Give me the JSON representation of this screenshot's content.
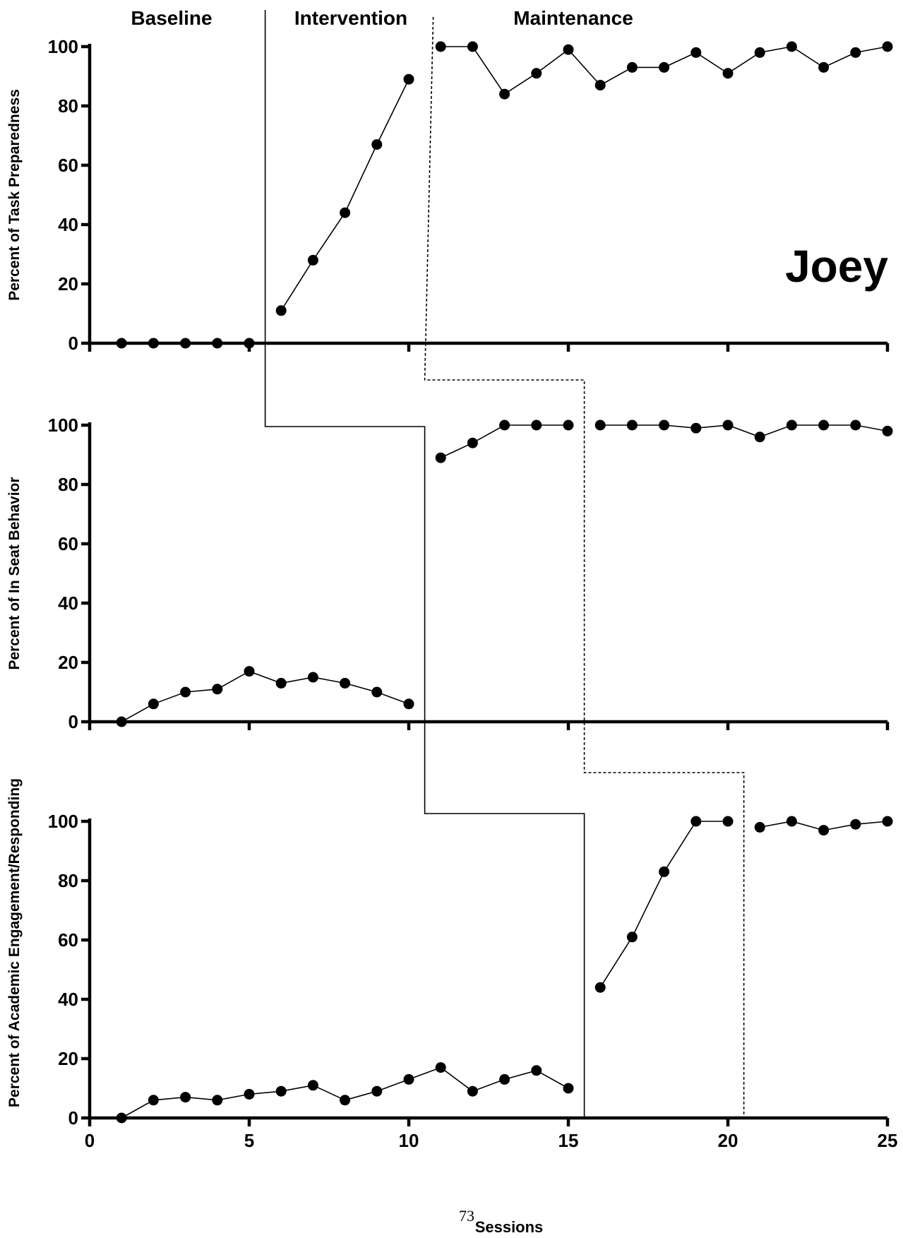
{
  "page_number": "73",
  "chart_data": {
    "type": "line",
    "participant": "Joey",
    "phases": [
      "Baseline",
      "Intervention",
      "Maintenance"
    ],
    "xlabel": "Sessions",
    "xlim": [
      0,
      25
    ],
    "x_ticks": [
      "0",
      "5",
      "10",
      "15",
      "20",
      "25"
    ],
    "panels": [
      {
        "ylabel": "Percent of Task Preparedness",
        "ylim": [
          0,
          100
        ],
        "y_ticks": [
          "0",
          "20",
          "40",
          "60",
          "80",
          "100"
        ],
        "segments": [
          {
            "phase": "Baseline",
            "x": [
              1,
              2,
              3,
              4,
              5
            ],
            "y": [
              0,
              0,
              0,
              0,
              0
            ]
          },
          {
            "phase": "Intervention",
            "x": [
              6,
              7,
              8,
              9,
              10
            ],
            "y": [
              11,
              28,
              44,
              67,
              89
            ]
          },
          {
            "phase": "Maintenance",
            "x": [
              11,
              12,
              13,
              14,
              15,
              16,
              17,
              18,
              19,
              20,
              21,
              22,
              23,
              24,
              25
            ],
            "y": [
              100,
              100,
              84,
              91,
              99,
              87,
              93,
              93,
              98,
              91,
              98,
              100,
              93,
              98,
              100
            ]
          }
        ]
      },
      {
        "ylabel": "Percent of In Seat Behavior",
        "ylim": [
          0,
          100
        ],
        "y_ticks": [
          "0",
          "20",
          "40",
          "60",
          "80",
          "100"
        ],
        "segments": [
          {
            "phase": "Baseline",
            "x": [
              1,
              2,
              3,
              4,
              5,
              6,
              7,
              8,
              9,
              10
            ],
            "y": [
              0,
              6,
              10,
              11,
              17,
              13,
              15,
              13,
              10,
              6
            ]
          },
          {
            "phase": "Intervention",
            "x": [
              11,
              12,
              13,
              14,
              15
            ],
            "y": [
              89,
              94,
              100,
              100,
              100
            ]
          },
          {
            "phase": "Maintenance",
            "x": [
              16,
              17,
              18,
              19,
              20,
              21,
              22,
              23,
              24,
              25
            ],
            "y": [
              100,
              100,
              100,
              99,
              100,
              96,
              100,
              100,
              100,
              98
            ]
          }
        ]
      },
      {
        "ylabel": "Percent of Academic Engagement/Responding",
        "ylim": [
          0,
          100
        ],
        "y_ticks": [
          "0",
          "20",
          "40",
          "60",
          "80",
          "100"
        ],
        "segments": [
          {
            "phase": "Baseline",
            "x": [
              1,
              2,
              3,
              4,
              5,
              6,
              7,
              8,
              9,
              10,
              11,
              12,
              13,
              14,
              15
            ],
            "y": [
              0,
              6,
              7,
              6,
              8,
              9,
              11,
              6,
              9,
              13,
              17,
              9,
              13,
              16,
              10
            ]
          },
          {
            "phase": "Intervention",
            "x": [
              16,
              17,
              18,
              19,
              20
            ],
            "y": [
              44,
              61,
              83,
              100,
              100
            ]
          },
          {
            "phase": "Maintenance",
            "x": [
              21,
              22,
              23,
              24,
              25
            ],
            "y": [
              98,
              100,
              97,
              99,
              100
            ]
          }
        ]
      }
    ],
    "phase_change_lines": {
      "baseline_to_intervention": [
        5.5,
        10.5,
        15.5
      ],
      "intervention_to_maintenance": [
        10.5,
        15.5,
        20.5
      ]
    }
  }
}
